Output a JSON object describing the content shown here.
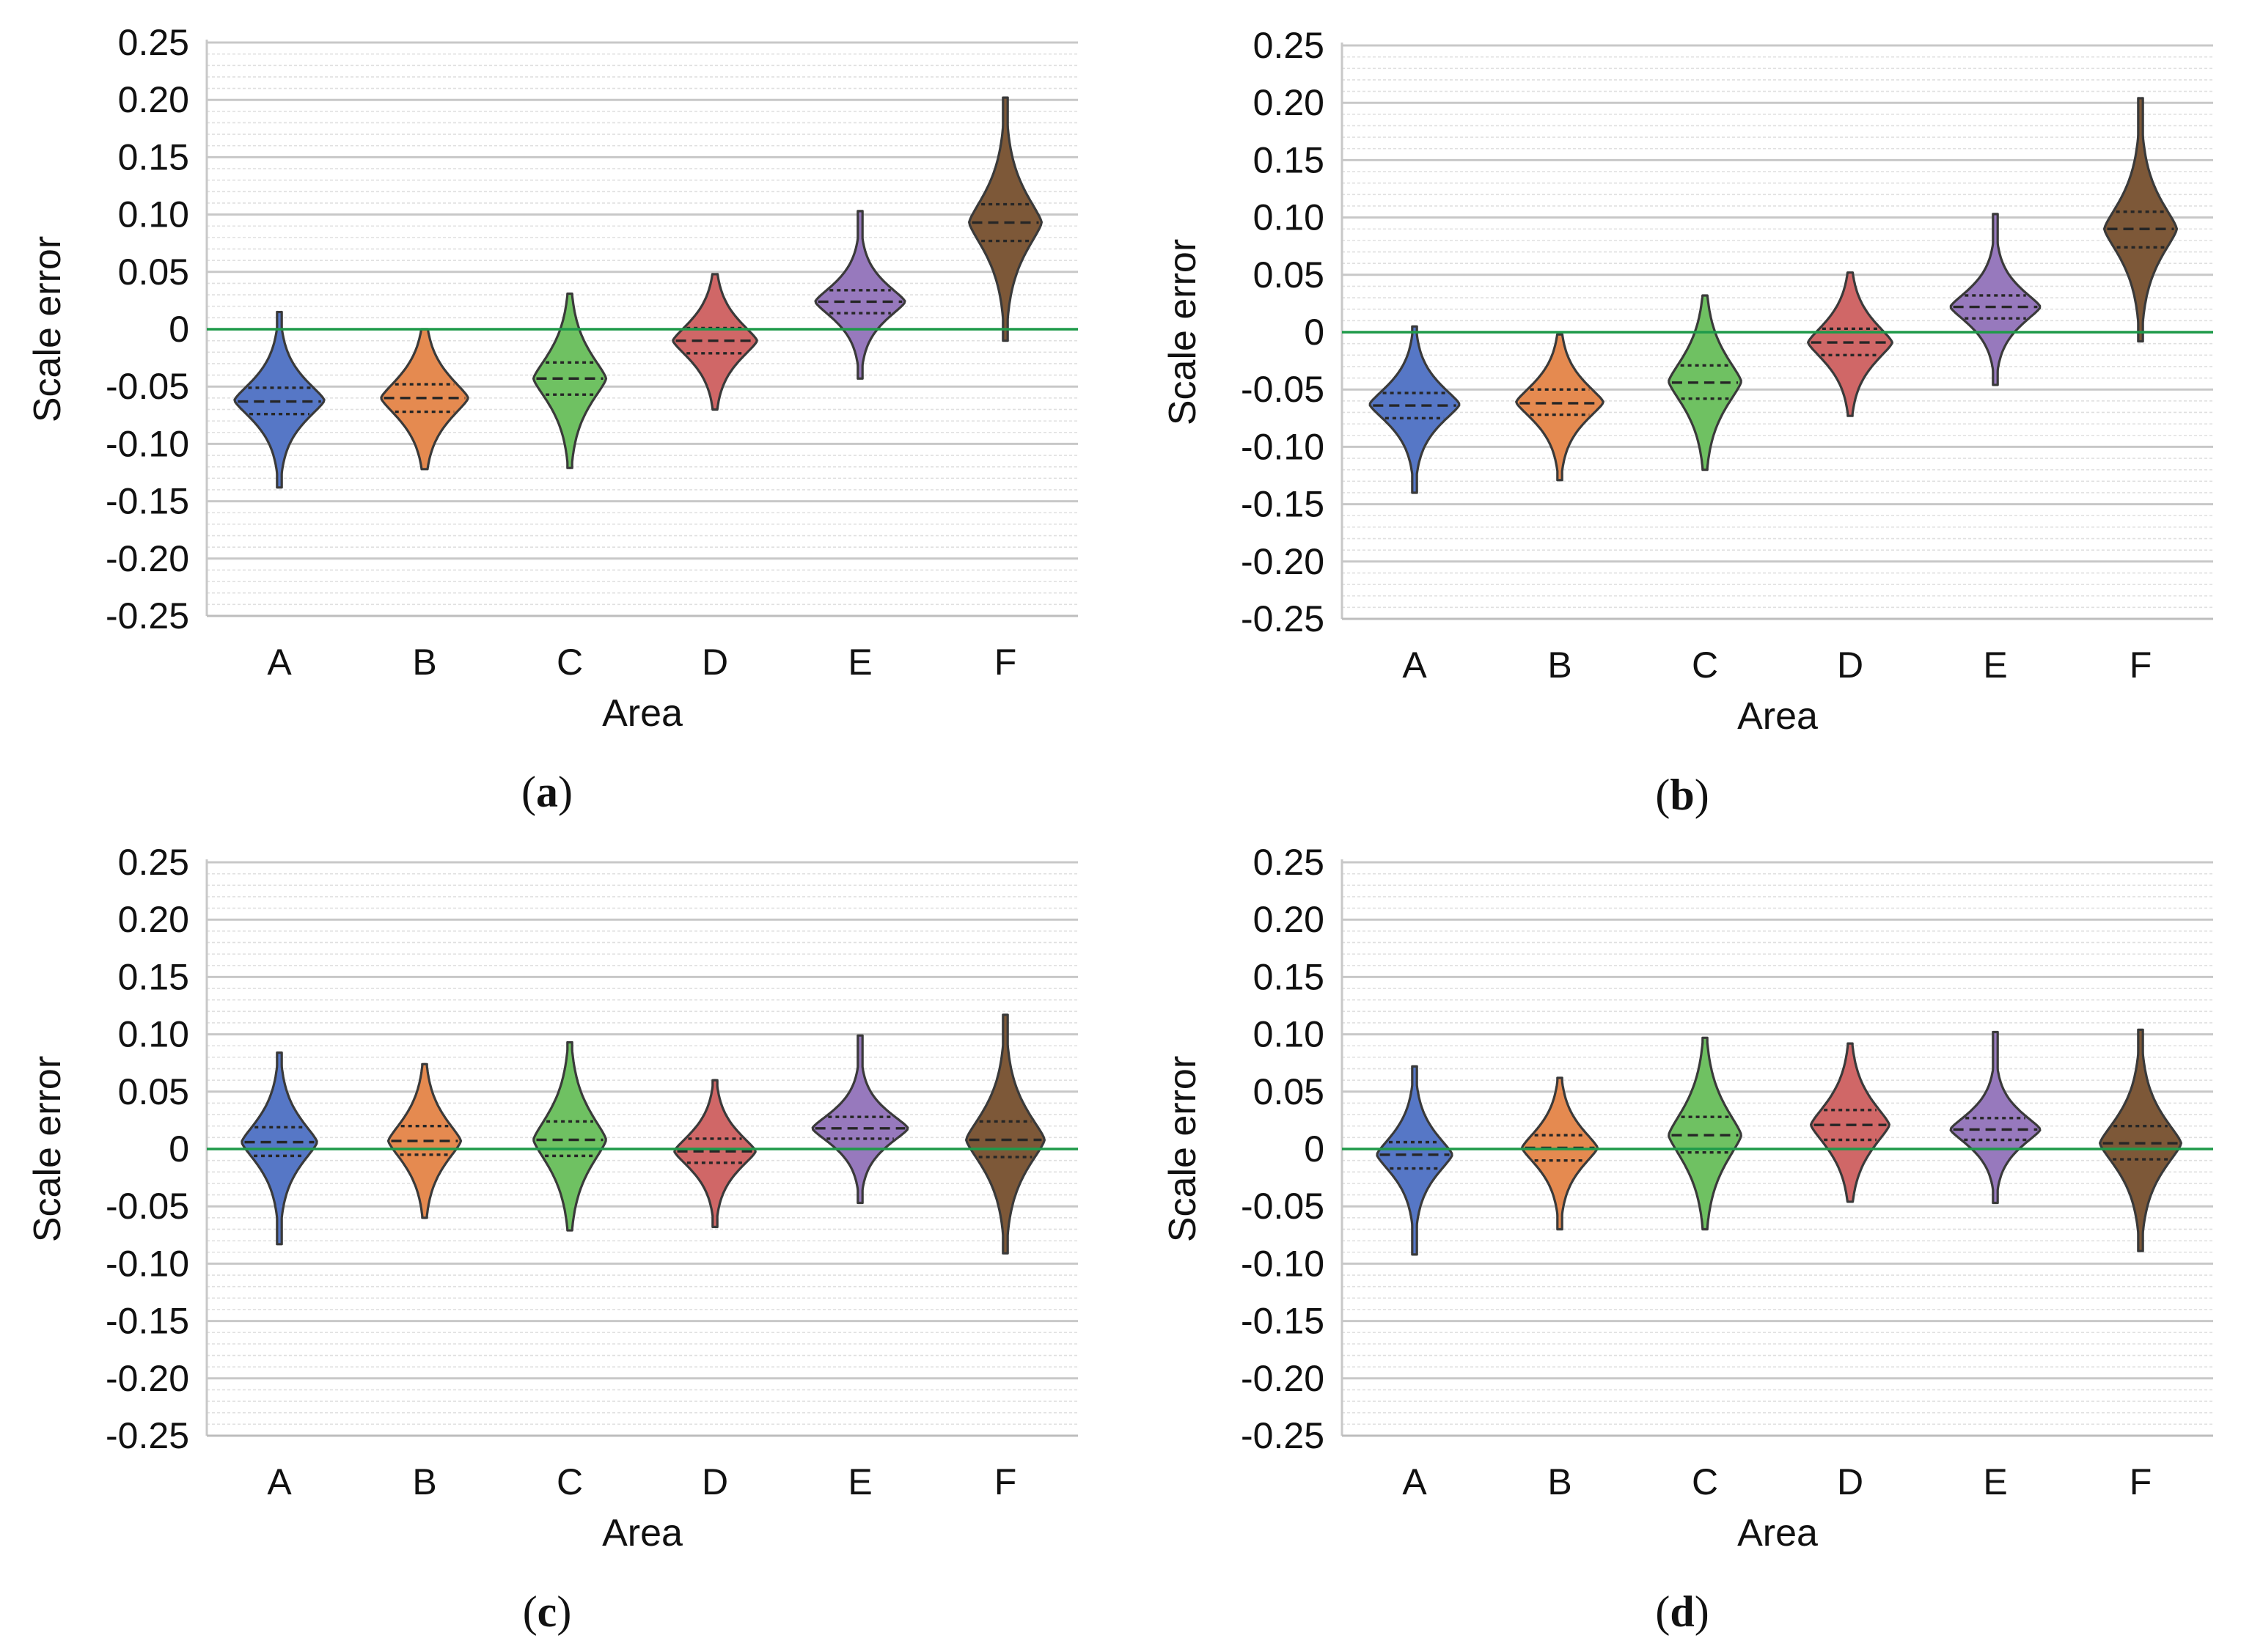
{
  "colors": {
    "A": "#5677c6",
    "B": "#e58a50",
    "C": "#6fc162",
    "D": "#d06767",
    "E": "#9779bd",
    "F": "#7d5838",
    "zero_line": "#1f9a4a",
    "major_grid": "#c8c8c8",
    "minor_grid": "#e0e0e0",
    "outline": "#3a3a3a"
  },
  "chart_data": [
    {
      "type": "violin",
      "panel_label": "a",
      "xlabel": "Area",
      "ylabel": "Scale error",
      "ylim": [
        -0.25,
        0.25
      ],
      "yticks": [
        "-0.25",
        "-0.20",
        "-0.15",
        "-0.10",
        "-0.05",
        "0",
        "0.05",
        "0.10",
        "0.15",
        "0.20",
        "0.25"
      ],
      "categories": [
        "A",
        "B",
        "C",
        "D",
        "E",
        "F"
      ],
      "reference_line": 0,
      "violins": [
        {
          "category": "A",
          "min": -0.138,
          "q1": -0.074,
          "median": -0.063,
          "q3": -0.051,
          "max": 0.015,
          "mode": -0.062,
          "width": 0.62
        },
        {
          "category": "B",
          "min": -0.122,
          "q1": -0.072,
          "median": -0.06,
          "q3": -0.048,
          "max": 0.0,
          "mode": -0.06,
          "width": 0.6
        },
        {
          "category": "C",
          "min": -0.121,
          "q1": -0.057,
          "median": -0.043,
          "q3": -0.029,
          "max": 0.031,
          "mode": -0.043,
          "width": 0.5
        },
        {
          "category": "D",
          "min": -0.07,
          "q1": -0.021,
          "median": -0.01,
          "q3": 0.001,
          "max": 0.048,
          "mode": -0.01,
          "width": 0.58
        },
        {
          "category": "E",
          "min": -0.043,
          "q1": 0.014,
          "median": 0.024,
          "q3": 0.034,
          "max": 0.103,
          "mode": 0.024,
          "width": 0.62
        },
        {
          "category": "F",
          "min": -0.01,
          "q1": 0.077,
          "median": 0.093,
          "q3": 0.109,
          "max": 0.202,
          "mode": 0.093,
          "width": 0.5
        }
      ]
    },
    {
      "type": "violin",
      "panel_label": "b",
      "xlabel": "Area",
      "ylabel": "Scale error",
      "ylim": [
        -0.25,
        0.25
      ],
      "yticks": [
        "-0.25",
        "-0.20",
        "-0.15",
        "-0.10",
        "-0.05",
        "0",
        "0.05",
        "0.10",
        "0.15",
        "0.20",
        "0.25"
      ],
      "categories": [
        "A",
        "B",
        "C",
        "D",
        "E",
        "F"
      ],
      "reference_line": 0,
      "violins": [
        {
          "category": "A",
          "min": -0.14,
          "q1": -0.075,
          "median": -0.064,
          "q3": -0.053,
          "max": 0.005,
          "mode": -0.063,
          "width": 0.62
        },
        {
          "category": "B",
          "min": -0.129,
          "q1": -0.072,
          "median": -0.062,
          "q3": -0.05,
          "max": -0.002,
          "mode": -0.061,
          "width": 0.6
        },
        {
          "category": "C",
          "min": -0.12,
          "q1": -0.058,
          "median": -0.044,
          "q3": -0.029,
          "max": 0.032,
          "mode": -0.043,
          "width": 0.5
        },
        {
          "category": "D",
          "min": -0.073,
          "q1": -0.02,
          "median": -0.009,
          "q3": 0.003,
          "max": 0.052,
          "mode": -0.009,
          "width": 0.58
        },
        {
          "category": "E",
          "min": -0.046,
          "q1": 0.012,
          "median": 0.022,
          "q3": 0.032,
          "max": 0.103,
          "mode": 0.022,
          "width": 0.62
        },
        {
          "category": "F",
          "min": -0.008,
          "q1": 0.074,
          "median": 0.09,
          "q3": 0.105,
          "max": 0.204,
          "mode": 0.09,
          "width": 0.5
        }
      ]
    },
    {
      "type": "violin",
      "panel_label": "c",
      "xlabel": "Area",
      "ylabel": "Scale error",
      "ylim": [
        -0.25,
        0.25
      ],
      "yticks": [
        "-0.25",
        "-0.20",
        "-0.15",
        "-0.10",
        "-0.05",
        "0",
        "0.05",
        "0.10",
        "0.15",
        "0.20",
        "0.25"
      ],
      "categories": [
        "A",
        "B",
        "C",
        "D",
        "E",
        "F"
      ],
      "reference_line": 0,
      "violins": [
        {
          "category": "A",
          "min": -0.083,
          "q1": -0.006,
          "median": 0.006,
          "q3": 0.019,
          "max": 0.084,
          "mode": 0.006,
          "width": 0.52
        },
        {
          "category": "B",
          "min": -0.06,
          "q1": -0.005,
          "median": 0.007,
          "q3": 0.02,
          "max": 0.074,
          "mode": 0.007,
          "width": 0.5
        },
        {
          "category": "C",
          "min": -0.071,
          "q1": -0.006,
          "median": 0.008,
          "q3": 0.024,
          "max": 0.093,
          "mode": 0.008,
          "width": 0.5
        },
        {
          "category": "D",
          "min": -0.068,
          "q1": -0.012,
          "median": -0.002,
          "q3": 0.009,
          "max": 0.06,
          "mode": -0.002,
          "width": 0.56
        },
        {
          "category": "E",
          "min": -0.047,
          "q1": 0.009,
          "median": 0.018,
          "q3": 0.028,
          "max": 0.099,
          "mode": 0.018,
          "width": 0.66
        },
        {
          "category": "F",
          "min": -0.091,
          "q1": -0.007,
          "median": 0.008,
          "q3": 0.024,
          "max": 0.117,
          "mode": 0.008,
          "width": 0.54
        }
      ]
    },
    {
      "type": "violin",
      "panel_label": "d",
      "xlabel": "Area",
      "ylabel": "Scale error",
      "ylim": [
        -0.25,
        0.25
      ],
      "yticks": [
        "-0.25",
        "-0.20",
        "-0.15",
        "-0.10",
        "-0.05",
        "0",
        "0.05",
        "0.10",
        "0.15",
        "0.20",
        "0.25"
      ],
      "categories": [
        "A",
        "B",
        "C",
        "D",
        "E",
        "F"
      ],
      "reference_line": 0,
      "violins": [
        {
          "category": "A",
          "min": -0.092,
          "q1": -0.017,
          "median": -0.005,
          "q3": 0.006,
          "max": 0.072,
          "mode": -0.005,
          "width": 0.52
        },
        {
          "category": "B",
          "min": -0.07,
          "q1": -0.01,
          "median": 0.001,
          "q3": 0.012,
          "max": 0.062,
          "mode": 0.001,
          "width": 0.52
        },
        {
          "category": "C",
          "min": -0.07,
          "q1": -0.003,
          "median": 0.012,
          "q3": 0.028,
          "max": 0.097,
          "mode": 0.012,
          "width": 0.5
        },
        {
          "category": "D",
          "min": -0.046,
          "q1": 0.008,
          "median": 0.021,
          "q3": 0.034,
          "max": 0.092,
          "mode": 0.021,
          "width": 0.54
        },
        {
          "category": "E",
          "min": -0.047,
          "q1": 0.008,
          "median": 0.017,
          "q3": 0.027,
          "max": 0.102,
          "mode": 0.017,
          "width": 0.62
        },
        {
          "category": "F",
          "min": -0.089,
          "q1": -0.009,
          "median": 0.005,
          "q3": 0.02,
          "max": 0.104,
          "mode": 0.005,
          "width": 0.56
        }
      ]
    }
  ]
}
